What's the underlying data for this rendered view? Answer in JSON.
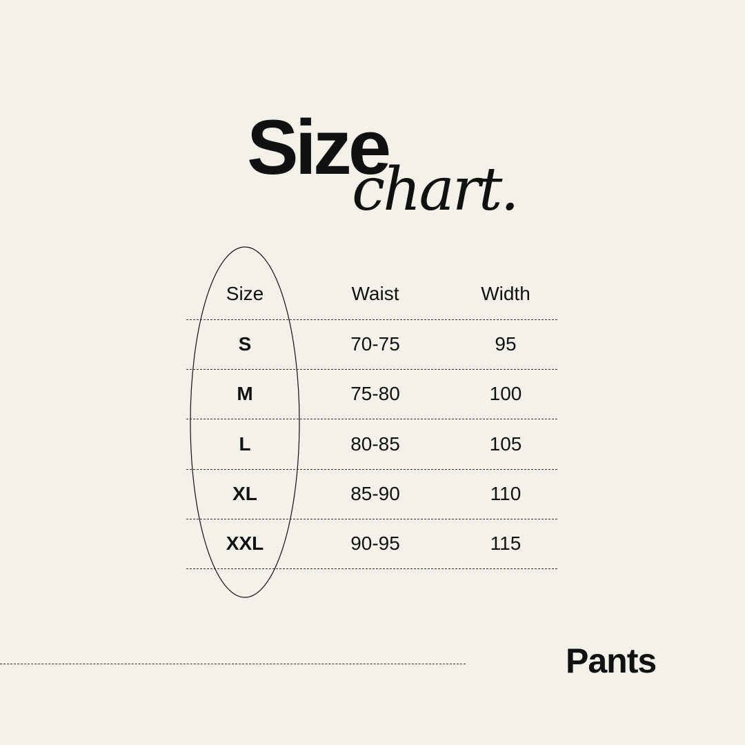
{
  "title": {
    "main": "Size",
    "script": "chart."
  },
  "table": {
    "headers": [
      "Size",
      "Waist",
      "Width"
    ],
    "rows": [
      [
        "S",
        "70-75",
        "95"
      ],
      [
        "M",
        "75-80",
        "100"
      ],
      [
        "L",
        "80-85",
        "105"
      ],
      [
        "XL",
        "85-90",
        "110"
      ],
      [
        "XXL",
        "90-95",
        "115"
      ]
    ]
  },
  "footer": {
    "label": "Pants"
  },
  "colors": {
    "background": "#f4f0ea",
    "text": "#111111"
  }
}
